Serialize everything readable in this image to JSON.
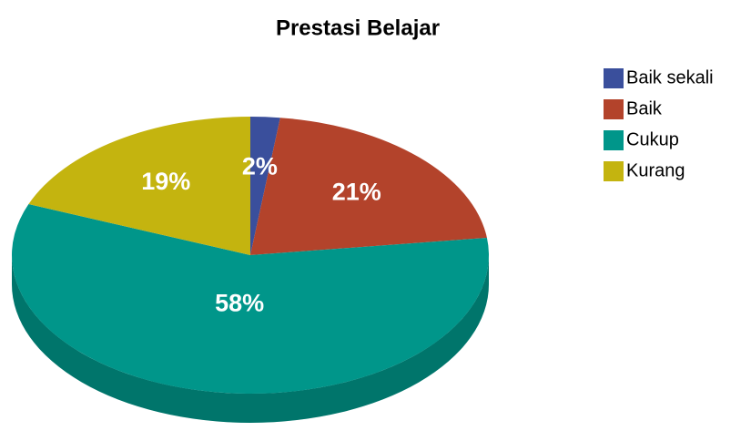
{
  "chart_data": {
    "type": "pie",
    "title": "Prestasi Belajar",
    "categories": [
      "Baik sekali",
      "Baik",
      "Cukup",
      "Kurang"
    ],
    "values": [
      2,
      21,
      58,
      19
    ],
    "value_labels": [
      "2%",
      "21%",
      "58%",
      "19%"
    ],
    "colors": [
      "#3a4f9c",
      "#b3432b",
      "#00968a",
      "#c4b40f"
    ],
    "legend": "right",
    "three_d": true
  }
}
